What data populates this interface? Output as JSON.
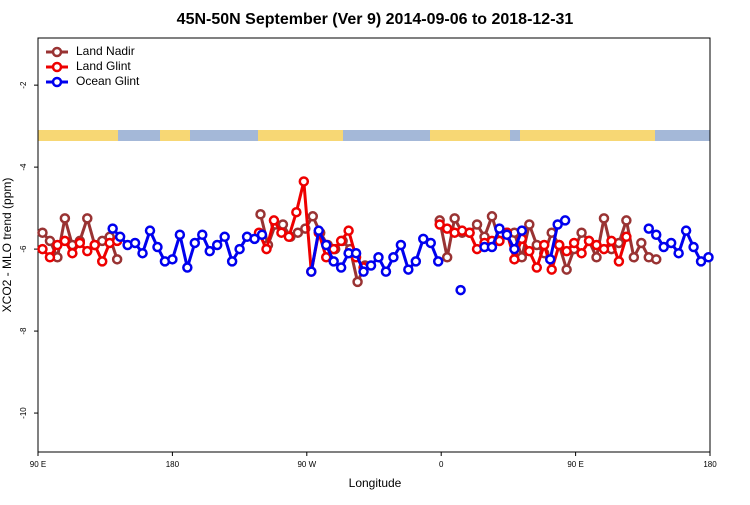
{
  "chart_data": {
    "type": "line",
    "title": "45N-50N September (Ver 9)   2014-09-06 to 2018-12-31",
    "x_label": "Longitude",
    "y_label": "XCO2 - MLO trend (ppm)",
    "xlim": [
      90,
      540
    ],
    "xticks": [
      {
        "value": 90,
        "label": "90 E"
      },
      {
        "value": 180,
        "label": "180"
      },
      {
        "value": 270,
        "label": "90 W"
      },
      {
        "value": 360,
        "label": "0"
      },
      {
        "value": 450,
        "label": "90 E"
      },
      {
        "value": 540,
        "label": "180"
      }
    ],
    "ylim": [
      -10.95,
      -0.85
    ],
    "yticks": [
      -10,
      -8,
      -6,
      -4,
      -2
    ],
    "legend": "top-left",
    "series": [
      {
        "name": "Land Nadir",
        "color": "#993333",
        "x": [
          93,
          98,
          103,
          108,
          113,
          118,
          123,
          128,
          133,
          138,
          143,
          null,
          239,
          244,
          249,
          254,
          259,
          264,
          269,
          274,
          279,
          284,
          289,
          294,
          299,
          304,
          309,
          null,
          359,
          364,
          369,
          374,
          379,
          384,
          389,
          394,
          399,
          404,
          409,
          414,
          419,
          424,
          429,
          434,
          439,
          444,
          449,
          454,
          459,
          464,
          469,
          474,
          479,
          484,
          489,
          494,
          499,
          504
        ],
        "values": [
          -5.6,
          -5.8,
          -6.2,
          -5.25,
          -5.9,
          -5.8,
          -5.25,
          -5.9,
          -5.8,
          -5.7,
          -6.25,
          null,
          -5.15,
          -5.9,
          -5.4,
          -5.4,
          -5.7,
          -5.6,
          -5.5,
          -5.2,
          -5.6,
          -5.9,
          -6.0,
          -5.8,
          -6.0,
          -6.8,
          -6.4,
          null,
          -5.3,
          -6.2,
          -5.25,
          -5.6,
          -5.6,
          -5.4,
          -5.7,
          -5.2,
          -5.8,
          -5.6,
          -5.6,
          -6.2,
          -5.4,
          -5.9,
          -6.1,
          -5.6,
          -5.9,
          -6.5,
          -6.0,
          -5.6,
          -5.8,
          -6.2,
          -5.25,
          -6.0,
          -5.85,
          -5.3,
          -6.2,
          -5.85,
          -6.2,
          -6.25
        ]
      },
      {
        "name": "Land Glint",
        "color": "#ee0000",
        "x": [
          93,
          98,
          103,
          108,
          113,
          118,
          123,
          128,
          133,
          138,
          143,
          null,
          238,
          243,
          248,
          253,
          258,
          263,
          268,
          273,
          278,
          283,
          288,
          293,
          298,
          303,
          308,
          null,
          359,
          364,
          369,
          374,
          379,
          384,
          389,
          394,
          399,
          404,
          409,
          414,
          419,
          424,
          429,
          434,
          439,
          444,
          449,
          454,
          459,
          464,
          469,
          474,
          479,
          484
        ],
        "values": [
          -6.0,
          -6.2,
          -5.9,
          -5.8,
          -6.1,
          -5.85,
          -6.05,
          -5.9,
          -6.3,
          -5.85,
          -5.8,
          null,
          -5.6,
          -6.0,
          -5.3,
          -5.6,
          -5.7,
          -5.1,
          -4.35,
          -6.55,
          -5.6,
          -6.2,
          -6.0,
          -5.8,
          -5.55,
          -6.2,
          -6.45,
          null,
          -5.4,
          -5.5,
          -5.6,
          -5.55,
          -5.6,
          -6.0,
          -5.85,
          -5.8,
          -5.8,
          -5.6,
          -6.25,
          -5.75,
          -6.05,
          -6.45,
          -5.9,
          -6.5,
          -5.9,
          -6.05,
          -5.85,
          -6.1,
          -5.8,
          -5.9,
          -6.0,
          -5.8,
          -6.3,
          -5.7
        ]
      },
      {
        "name": "Ocean Glint",
        "color": "#0000ee",
        "x": [
          140,
          145,
          150,
          155,
          160,
          165,
          170,
          175,
          180,
          185,
          190,
          195,
          200,
          205,
          210,
          215,
          220,
          225,
          230,
          235,
          240,
          null,
          273,
          278,
          283,
          288,
          293,
          298,
          303,
          308,
          313,
          318,
          323,
          328,
          333,
          338,
          343,
          348,
          353,
          358,
          null,
          373,
          null,
          389,
          394,
          399,
          404,
          409,
          414,
          null,
          433,
          438,
          443,
          null,
          499,
          504,
          509,
          514,
          519,
          524,
          529,
          534,
          539
        ],
        "values": [
          -5.5,
          -5.7,
          -5.9,
          -5.85,
          -6.1,
          -5.55,
          -5.95,
          -6.3,
          -6.25,
          -5.65,
          -6.45,
          -5.85,
          -5.65,
          -6.05,
          -5.9,
          -5.7,
          -6.3,
          -6.0,
          -5.7,
          -5.75,
          -5.65,
          null,
          -6.55,
          -5.55,
          -5.9,
          -6.3,
          -6.45,
          -6.1,
          -6.1,
          -6.55,
          -6.4,
          -6.2,
          -6.55,
          -6.2,
          -5.9,
          -6.5,
          -6.3,
          -5.75,
          -5.85,
          -6.3,
          null,
          -7.0,
          null,
          -5.95,
          -5.95,
          -5.5,
          -5.65,
          -6.0,
          -5.55,
          null,
          -6.25,
          -5.4,
          -5.3,
          null,
          -5.5,
          -5.65,
          -5.95,
          -5.85,
          -6.1,
          -5.55,
          -5.95,
          -6.3,
          -6.2
        ]
      }
    ]
  }
}
